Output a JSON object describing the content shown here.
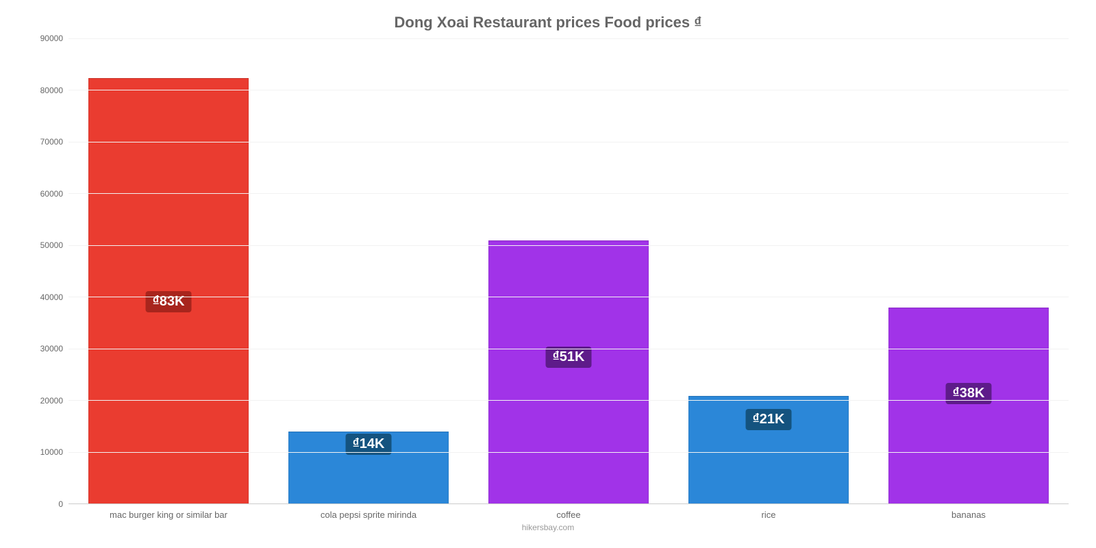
{
  "chart": {
    "type": "bar",
    "title": "Dong Xoai Restaurant prices Food prices ₫",
    "title_fontsize": 22,
    "title_color": "#666666",
    "credit": "hikersbay.com",
    "background_color": "#ffffff",
    "grid_color": "#f2f2f2",
    "axis_text_color": "#666666",
    "axis_fontsize": 12,
    "ylim_min": 0,
    "ylim_max": 90000,
    "ytick_step": 10000,
    "bar_width_pct": 80,
    "label_fontsize": 20,
    "categories": [
      "mac burger king or similar bar",
      "cola pepsi sprite mirinda",
      "coffee",
      "rice",
      "bananas"
    ],
    "values": [
      82500,
      14000,
      51000,
      21000,
      38000
    ],
    "value_labels": [
      "₫83K",
      "₫14K",
      "₫51K",
      "₫21K",
      "₫38K"
    ],
    "bar_colors": [
      "#ea3c30",
      "#2b87d8",
      "#a133e8",
      "#2b87d8",
      "#a133e8"
    ],
    "label_bg_colors": [
      "#a8251d",
      "#14537f",
      "#5e1b8a",
      "#14537f",
      "#5e1b8a"
    ],
    "label_offsets_pct": [
      50,
      2,
      40,
      12,
      38
    ]
  }
}
